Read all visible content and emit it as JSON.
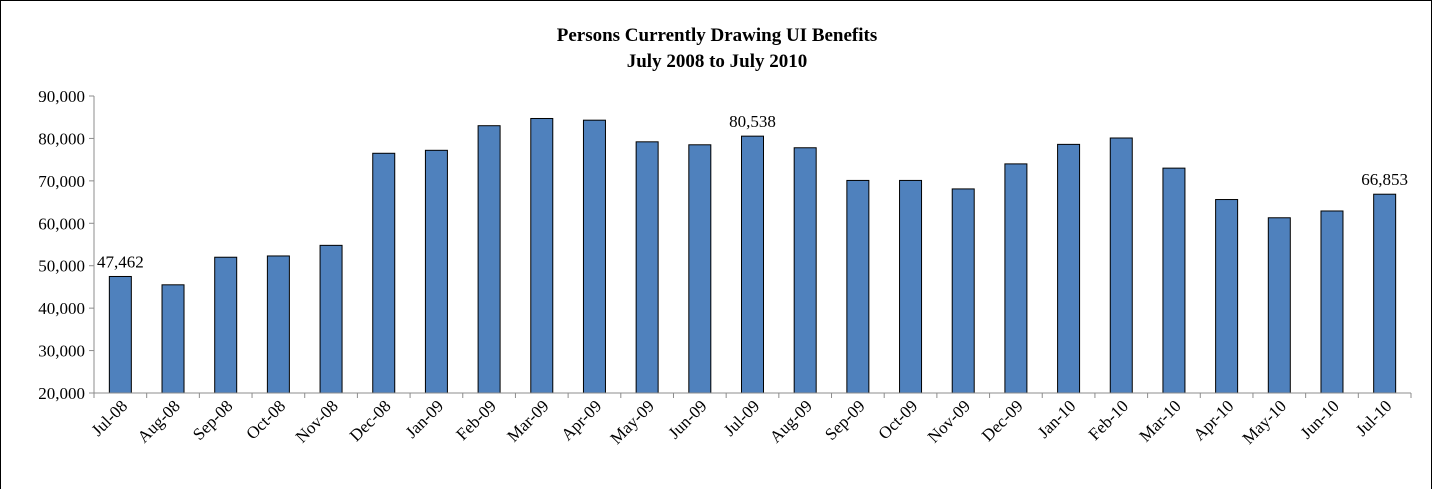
{
  "chart_data": {
    "type": "bar",
    "title": "Persons Currently Drawing UI Benefits",
    "subtitle": "July 2008 to July 2010",
    "xlabel": "",
    "ylabel": "",
    "ylim": [
      20000,
      90000
    ],
    "ytick_values": [
      20000,
      30000,
      40000,
      50000,
      60000,
      70000,
      80000,
      90000
    ],
    "ytick_labels": [
      "20,000",
      "30,000",
      "40,000",
      "50,000",
      "60,000",
      "70,000",
      "80,000",
      "90,000"
    ],
    "grid": false,
    "legend": "none",
    "bar_color": "#4f81bd",
    "categories": [
      "Jul-08",
      "Aug-08",
      "Sep-08",
      "Oct-08",
      "Nov-08",
      "Dec-08",
      "Jan-09",
      "Feb-09",
      "Mar-09",
      "Apr-09",
      "May-09",
      "Jun-09",
      "Jul-09",
      "Aug-09",
      "Sep-09",
      "Oct-09",
      "Nov-09",
      "Dec-09",
      "Jan-10",
      "Feb-10",
      "Mar-10",
      "Apr-10",
      "May-10",
      "Jun-10",
      "Jul-10"
    ],
    "values": [
      47462,
      45500,
      52000,
      52300,
      54800,
      76500,
      77200,
      83000,
      84700,
      84300,
      79200,
      78500,
      80538,
      77800,
      70100,
      70100,
      68100,
      74000,
      78600,
      80100,
      73000,
      65600,
      61300,
      62900,
      66853
    ],
    "data_labels": [
      {
        "index": 0,
        "text": "47,462"
      },
      {
        "index": 12,
        "text": "80,538"
      },
      {
        "index": 24,
        "text": "66,853"
      }
    ]
  }
}
